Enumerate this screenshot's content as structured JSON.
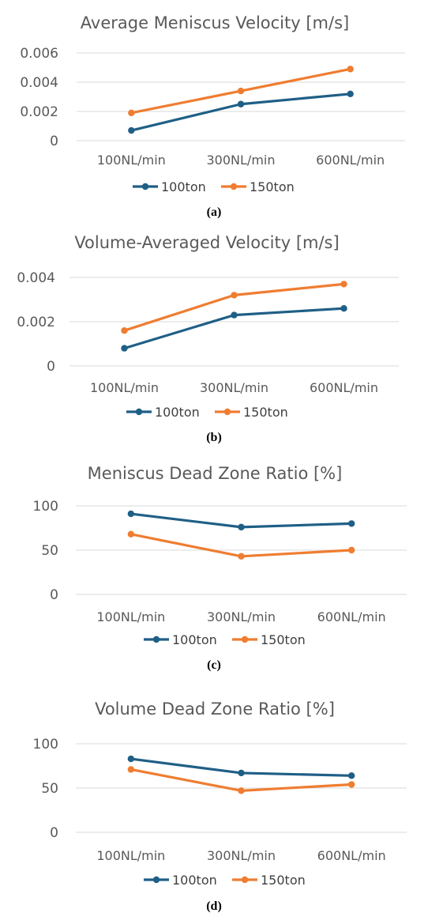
{
  "colors": {
    "series_100ton": "#1f5f86",
    "series_150ton": "#ef7d31",
    "grid": "#d9d9d9",
    "text": "#595959"
  },
  "chart_data": [
    {
      "type": "line",
      "title": "Average Meniscus Velocity [m/s]",
      "caption": "(a)",
      "categories": [
        "100NL/min",
        "300NL/min",
        "600NL/min"
      ],
      "ylim": [
        0,
        0.006
      ],
      "yticks": [
        "0",
        "0.002",
        "0.004",
        "0.006"
      ],
      "yticks_values": [
        0,
        0.002,
        0.004,
        0.006
      ],
      "grid": true,
      "legend": "bottom",
      "series": [
        {
          "name": "100ton",
          "values": [
            0.0007,
            0.0025,
            0.0032
          ]
        },
        {
          "name": "150ton",
          "values": [
            0.0019,
            0.0034,
            0.0049
          ]
        }
      ]
    },
    {
      "type": "line",
      "title": "Volume-Averaged Velocity [m/s]",
      "caption": "(b)",
      "categories": [
        "100NL/min",
        "300NL/min",
        "600NL/min"
      ],
      "ylim": [
        0,
        0.004
      ],
      "yticks": [
        "0",
        "0.002",
        "0.004"
      ],
      "yticks_values": [
        0,
        0.002,
        0.004
      ],
      "grid": true,
      "legend": "bottom",
      "series": [
        {
          "name": "100ton",
          "values": [
            0.0008,
            0.0023,
            0.0026
          ]
        },
        {
          "name": "150ton",
          "values": [
            0.0016,
            0.0032,
            0.0037
          ]
        }
      ]
    },
    {
      "type": "line",
      "title": "Meniscus Dead Zone Ratio [%]",
      "caption": "(c)",
      "categories": [
        "100NL/min",
        "300NL/min",
        "600NL/min"
      ],
      "ylim": [
        0,
        100
      ],
      "yticks": [
        "0",
        "50",
        "100"
      ],
      "yticks_values": [
        0,
        50,
        100
      ],
      "grid": true,
      "legend": "bottom",
      "series": [
        {
          "name": "100ton",
          "values": [
            91,
            76,
            80
          ]
        },
        {
          "name": "150ton",
          "values": [
            68,
            43,
            50
          ]
        }
      ]
    },
    {
      "type": "line",
      "title": "Volume Dead Zone Ratio [%]",
      "caption": "(d)",
      "categories": [
        "100NL/min",
        "300NL/min",
        "600NL/min"
      ],
      "ylim": [
        0,
        100
      ],
      "yticks": [
        "0",
        "50",
        "100"
      ],
      "yticks_values": [
        0,
        50,
        100
      ],
      "grid": true,
      "legend": "bottom",
      "series": [
        {
          "name": "100ton",
          "values": [
            83,
            67,
            64
          ]
        },
        {
          "name": "150ton",
          "values": [
            71,
            47,
            54
          ]
        }
      ]
    }
  ]
}
